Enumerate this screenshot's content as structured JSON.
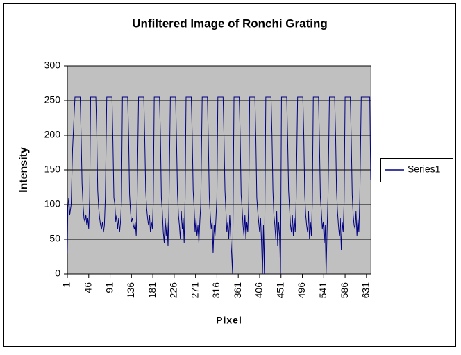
{
  "chart_data": {
    "type": "line",
    "title": "Unfiltered Image of Ronchi Grating",
    "x_label": "Pixel",
    "y_label": "Intensity",
    "xlim": [
      1,
      640
    ],
    "xticks": [
      1,
      46,
      91,
      136,
      181,
      226,
      271,
      316,
      361,
      406,
      451,
      496,
      541,
      586,
      631
    ],
    "ylim": [
      0,
      300
    ],
    "yticks": [
      0,
      50,
      100,
      150,
      200,
      250,
      300
    ],
    "grid": true,
    "legend": "right",
    "x": [
      1,
      2,
      4,
      6,
      9,
      12,
      17,
      28,
      30,
      32,
      34,
      36,
      38,
      40,
      42,
      44,
      46,
      48,
      50,
      61,
      63,
      65,
      67,
      69,
      71,
      73,
      75,
      77,
      79,
      81,
      84,
      95,
      97,
      99,
      101,
      103,
      105,
      107,
      109,
      111,
      113,
      115,
      117,
      128,
      130,
      132,
      134,
      136,
      138,
      140,
      142,
      144,
      146,
      148,
      151,
      162,
      164,
      166,
      168,
      170,
      172,
      174,
      176,
      178,
      180,
      182,
      184,
      195,
      197,
      199,
      201,
      203,
      205,
      207,
      209,
      211,
      213,
      215,
      218,
      229,
      231,
      233,
      235,
      237,
      239,
      241,
      243,
      245,
      247,
      249,
      251,
      262,
      264,
      266,
      268,
      270,
      272,
      274,
      276,
      278,
      280,
      282,
      285,
      296,
      298,
      300,
      302,
      304,
      306,
      308,
      310,
      312,
      314,
      316,
      318,
      329,
      331,
      333,
      335,
      337,
      339,
      341,
      343,
      345,
      347,
      349,
      352,
      363,
      365,
      367,
      369,
      371,
      373,
      375,
      377,
      379,
      381,
      383,
      385,
      396,
      398,
      400,
      402,
      404,
      406,
      408,
      410,
      412,
      414,
      416,
      419,
      430,
      432,
      434,
      436,
      438,
      440,
      442,
      444,
      446,
      448,
      450,
      452,
      463,
      465,
      467,
      469,
      471,
      473,
      475,
      477,
      479,
      481,
      483,
      486,
      497,
      499,
      501,
      503,
      505,
      507,
      509,
      511,
      513,
      515,
      517,
      519,
      530,
      532,
      534,
      536,
      538,
      540,
      542,
      544,
      546,
      548,
      550,
      553,
      564,
      566,
      568,
      570,
      572,
      574,
      576,
      578,
      580,
      582,
      584,
      586,
      597,
      599,
      601,
      603,
      605,
      607,
      609,
      611,
      613,
      615,
      617,
      620,
      638,
      640
    ],
    "series": [
      {
        "name": "Series1",
        "color": "#000080",
        "values": [
          30,
          95,
          110,
          85,
          100,
          180,
          255,
          255,
          200,
          130,
          100,
          80,
          75,
          85,
          70,
          80,
          65,
          110,
          255,
          255,
          200,
          120,
          95,
          80,
          70,
          65,
          75,
          60,
          70,
          110,
          255,
          255,
          190,
          110,
          100,
          75,
          85,
          65,
          80,
          60,
          75,
          105,
          255,
          255,
          200,
          115,
          90,
          75,
          80,
          70,
          65,
          75,
          55,
          110,
          255,
          255,
          195,
          120,
          95,
          80,
          70,
          85,
          60,
          75,
          65,
          105,
          255,
          255,
          200,
          110,
          90,
          60,
          45,
          80,
          55,
          75,
          40,
          100,
          255,
          255,
          190,
          115,
          85,
          70,
          50,
          90,
          65,
          80,
          45,
          110,
          255,
          255,
          200,
          120,
          95,
          60,
          80,
          55,
          70,
          45,
          75,
          100,
          255,
          255,
          190,
          110,
          85,
          65,
          75,
          30,
          70,
          55,
          80,
          110,
          255,
          255,
          195,
          120,
          90,
          60,
          75,
          50,
          85,
          55,
          30,
          0,
          255,
          255,
          200,
          115,
          95,
          70,
          55,
          85,
          50,
          75,
          60,
          105,
          255,
          255,
          195,
          110,
          90,
          75,
          60,
          80,
          45,
          0,
          70,
          0,
          255,
          255,
          200,
          120,
          85,
          70,
          50,
          90,
          40,
          75,
          55,
          0,
          255,
          255,
          195,
          120,
          95,
          70,
          60,
          85,
          55,
          80,
          60,
          110,
          255,
          255,
          200,
          115,
          85,
          70,
          60,
          90,
          50,
          75,
          55,
          105,
          255,
          255,
          190,
          110,
          90,
          65,
          75,
          45,
          70,
          0,
          60,
          110,
          255,
          255,
          200,
          120,
          90,
          70,
          55,
          80,
          35,
          75,
          60,
          105,
          255,
          255,
          195,
          115,
          85,
          70,
          65,
          90,
          55,
          80,
          60,
          110,
          255,
          255,
          135
        ]
      }
    ]
  }
}
